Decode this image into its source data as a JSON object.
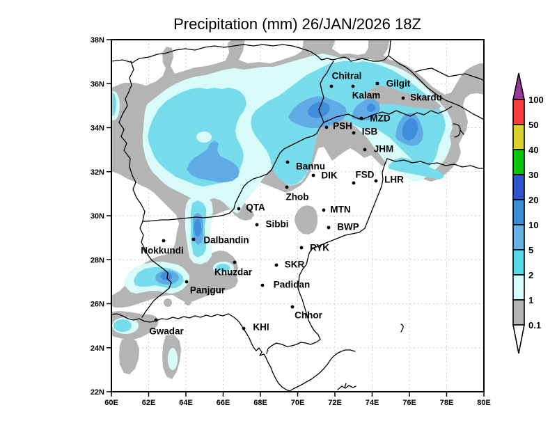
{
  "title": "Precipitation (mm) 26/JAN/2026 18Z",
  "map": {
    "extent": {
      "lon_min": "60E",
      "lon_max": "80E",
      "lat_min": "22N",
      "lat_max": "38N"
    },
    "x_ticks": [
      "60E",
      "62E",
      "64E",
      "66E",
      "68E",
      "70E",
      "72E",
      "74E",
      "76E",
      "78E",
      "80E"
    ],
    "y_ticks": [
      "38N",
      "36N",
      "34N",
      "32N",
      "30N",
      "28N",
      "26N",
      "24N",
      "22N"
    ],
    "cities": [
      {
        "name": "Chitral",
        "dot": [
          476,
          124
        ],
        "label": [
          498,
          109
        ]
      },
      {
        "name": "Kalam",
        "dot": [
          507,
          124
        ],
        "label": [
          526,
          137
        ]
      },
      {
        "name": "Gilgit",
        "dot": [
          542,
          120
        ],
        "label": [
          572,
          120
        ]
      },
      {
        "name": "Skardu",
        "dot": [
          579,
          141
        ],
        "label": [
          612,
          140
        ]
      },
      {
        "name": "MZD",
        "dot": [
          519,
          170
        ],
        "label": [
          546,
          170
        ]
      },
      {
        "name": "PSH",
        "dot": [
          469,
          183
        ],
        "label": [
          492,
          181
        ]
      },
      {
        "name": "ISB",
        "dot": [
          508,
          191
        ],
        "label": [
          531,
          189
        ]
      },
      {
        "name": "JHM",
        "dot": [
          524,
          215
        ],
        "label": [
          551,
          214
        ]
      },
      {
        "name": "Bannu",
        "dot": [
          413,
          233
        ],
        "label": [
          446,
          239
        ]
      },
      {
        "name": "DIK",
        "dot": [
          450,
          252
        ],
        "label": [
          473,
          252
        ]
      },
      {
        "name": "FSD",
        "dot": [
          508,
          263
        ],
        "label": [
          524,
          251
        ]
      },
      {
        "name": "LHR",
        "dot": [
          540,
          260
        ],
        "label": [
          566,
          258
        ]
      },
      {
        "name": "Zhob",
        "dot": [
          412,
          269
        ],
        "label": [
          427,
          283
        ]
      },
      {
        "name": "QTA",
        "dot": [
          343,
          300
        ],
        "label": [
          367,
          298
        ]
      },
      {
        "name": "MTN",
        "dot": [
          465,
          302
        ],
        "label": [
          489,
          301
        ]
      },
      {
        "name": "Sibbi",
        "dot": [
          369,
          323
        ],
        "label": [
          398,
          322
        ]
      },
      {
        "name": "BWP",
        "dot": [
          472,
          327
        ],
        "label": [
          500,
          326
        ]
      },
      {
        "name": "Nokkundi",
        "dot": [
          235,
          346
        ],
        "label": [
          233,
          360
        ]
      },
      {
        "name": "Dalbandin",
        "dot": [
          278,
          344
        ],
        "label": [
          325,
          345
        ]
      },
      {
        "name": "RYK",
        "dot": [
          433,
          356
        ],
        "label": [
          459,
          356
        ]
      },
      {
        "name": "SKR",
        "dot": [
          397,
          381
        ],
        "label": [
          423,
          380
        ]
      },
      {
        "name": "Khuzdar",
        "dot": [
          337,
          377
        ],
        "label": [
          335,
          391
        ]
      },
      {
        "name": "Panjgur",
        "dot": [
          268,
          405
        ],
        "label": [
          298,
          417
        ]
      },
      {
        "name": "Padidan",
        "dot": [
          377,
          410
        ],
        "label": [
          419,
          409
        ]
      },
      {
        "name": "Chhor",
        "dot": [
          420,
          441
        ],
        "label": [
          443,
          453
        ]
      },
      {
        "name": "KHI",
        "dot": [
          350,
          472
        ],
        "label": [
          375,
          470
        ]
      },
      {
        "name": "Gwadar",
        "dot": [
          224,
          460
        ],
        "label": [
          239,
          476
        ]
      }
    ]
  },
  "legend": {
    "values": [
      "100",
      "50",
      "40",
      "30",
      "20",
      "10",
      "5",
      "2",
      "1",
      "0.1"
    ],
    "band_colors": [
      "#fb3d3b",
      "#ddd12c",
      "#04c404",
      "#2e55ce",
      "#3a8ed8",
      "#66b1e8",
      "#56d9ea",
      "#d5fbfa",
      "#b4b4b4"
    ],
    "arrow_top_color": "#943a98",
    "arrow_bottom_color": "#ffffff"
  },
  "palette": {
    "gray": "#b4b4b4",
    "lvl1": "#d8fbfa",
    "lvl2": "#76dcec",
    "lvl5": "#60aae6",
    "lvl10": "#3f8edc",
    "white": "#ffffff"
  }
}
